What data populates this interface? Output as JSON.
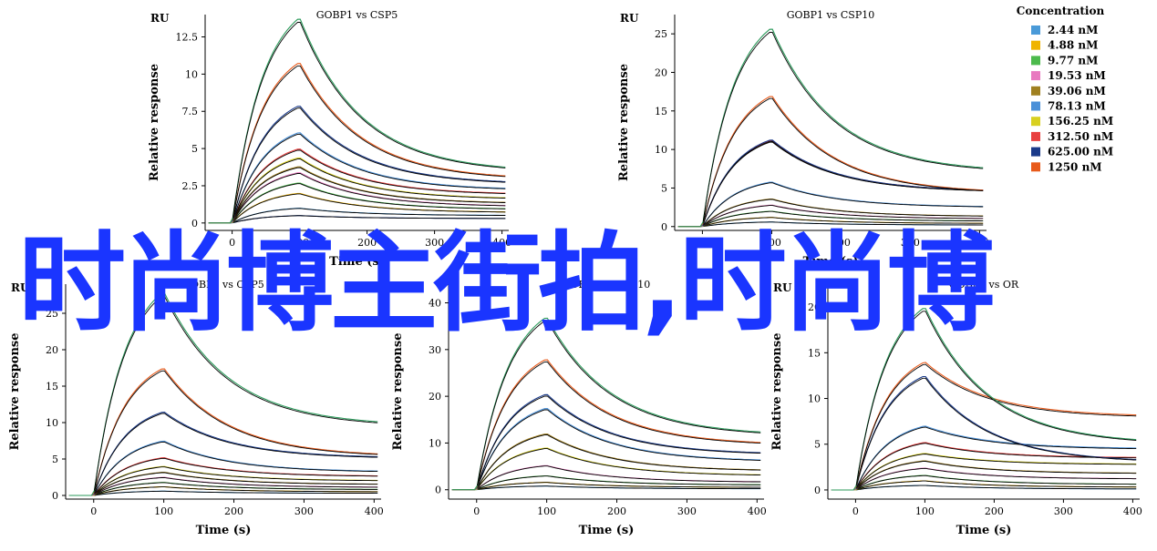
{
  "overlay": {
    "text": "时尚博主街拍,时尚博"
  },
  "legend": {
    "title": "Concentration",
    "entries": [
      {
        "label": "2.44 nM",
        "color": "#4a9ad8"
      },
      {
        "label": "4.88 nM",
        "color": "#f0b400"
      },
      {
        "label": "9.77 nM",
        "color": "#4cba4c"
      },
      {
        "label": "19.53 nM",
        "color": "#e87ac0"
      },
      {
        "label": "39.06 nM",
        "color": "#a08020"
      },
      {
        "label": "78.13 nM",
        "color": "#4a90d8"
      },
      {
        "label": "156.25 nM",
        "color": "#d8d020"
      },
      {
        "label": "312.50 nM",
        "color": "#e84040"
      },
      {
        "label": "625.00 nM",
        "color": "#1a3a8a"
      },
      {
        "label": "1250 nM",
        "color": "#e85a1a"
      }
    ]
  },
  "chart_data": [
    {
      "type": "line",
      "title": "GOBP1 vs CSP5",
      "unit_label": "RU",
      "xlabel": "Time (s)",
      "ylabel": "Relative response",
      "xlim": [
        -40,
        410
      ],
      "ylim": [
        -0.5,
        14
      ],
      "xticks": [
        0,
        100,
        200,
        300,
        400
      ],
      "xtick_labels": [
        "0",
        "100",
        "200",
        "300",
        "400"
      ],
      "yticks": [
        0,
        2.5,
        5,
        7.5,
        10,
        12.5
      ],
      "ytick_labels": [
        "0",
        "2.5",
        "5",
        "7.5",
        "10",
        "12.5"
      ],
      "assoc_end": 100,
      "series": [
        {
          "color": "#1a3a8a",
          "start": 0.5,
          "end": 0.3
        },
        {
          "color": "#4a9ad8",
          "start": 1.0,
          "end": 0.5
        },
        {
          "color": "#f0b400",
          "start": 2.0,
          "end": 0.7
        },
        {
          "color": "#4cba4c",
          "start": 2.7,
          "end": 0.9
        },
        {
          "color": "#e87ac0",
          "start": 3.4,
          "end": 1.1
        },
        {
          "color": "#a08020",
          "start": 3.8,
          "end": 1.3
        },
        {
          "color": "#d8d020",
          "start": 4.4,
          "end": 1.6
        },
        {
          "color": "#e84040",
          "start": 5.0,
          "end": 1.9
        },
        {
          "color": "#4a90d8",
          "start": 6.1,
          "end": 2.2
        },
        {
          "color": "#1a3a8a",
          "start": 7.9,
          "end": 2.6
        },
        {
          "color": "#e85a1a",
          "start": 10.8,
          "end": 2.9
        },
        {
          "color": "#2a9a5a",
          "start": 13.8,
          "end": 3.4
        }
      ]
    },
    {
      "type": "line",
      "title": "GOBP1 vs CSP10",
      "unit_label": "RU",
      "xlabel": "Time (s)",
      "ylabel": "Relative response",
      "xlim": [
        -40,
        410
      ],
      "ylim": [
        -0.5,
        27.5
      ],
      "xticks": [
        0,
        100,
        200,
        300,
        400
      ],
      "xtick_labels": [
        "0",
        "100",
        "200",
        "300",
        "400"
      ],
      "yticks": [
        0,
        5,
        10,
        15,
        20,
        25
      ],
      "ytick_labels": [
        "0",
        "5",
        "10",
        "15",
        "20",
        "25"
      ],
      "assoc_end": 100,
      "series": [
        {
          "color": "#4a9ad8",
          "start": 0.6,
          "end": 0.2
        },
        {
          "color": "#f0b400",
          "start": 1.2,
          "end": 0.4
        },
        {
          "color": "#4cba4c",
          "start": 2.0,
          "end": 0.7
        },
        {
          "color": "#e87ac0",
          "start": 2.8,
          "end": 1.0
        },
        {
          "color": "#a08020",
          "start": 3.6,
          "end": 1.3
        },
        {
          "color": "#4a90d8",
          "start": 5.8,
          "end": 2.5
        },
        {
          "color": "#e84040",
          "start": 11.2,
          "end": 4.5
        },
        {
          "color": "#1a3a8a",
          "start": 11.3,
          "end": 4.5
        },
        {
          "color": "#e85a1a",
          "start": 17.0,
          "end": 4.3
        },
        {
          "color": "#2a9a5a",
          "start": 25.8,
          "end": 7.0
        }
      ]
    },
    {
      "type": "line",
      "title": "GOBP2 vs CSP5",
      "unit_label": "RU",
      "xlabel": "Time (s)",
      "ylabel": "Relative response",
      "xlim": [
        -40,
        410
      ],
      "ylim": [
        -0.5,
        29
      ],
      "xticks": [
        0,
        100,
        200,
        300,
        400
      ],
      "xtick_labels": [
        "0",
        "100",
        "200",
        "300",
        "400"
      ],
      "yticks": [
        0,
        5,
        10,
        15,
        20,
        25
      ],
      "ytick_labels": [
        "0",
        "5",
        "10",
        "15",
        "20",
        "25"
      ],
      "assoc_end": 100,
      "series": [
        {
          "color": "#4a9ad8",
          "start": 0.6,
          "end": 0.3
        },
        {
          "color": "#f0b400",
          "start": 1.2,
          "end": 0.5
        },
        {
          "color": "#4cba4c",
          "start": 1.8,
          "end": 0.8
        },
        {
          "color": "#e87ac0",
          "start": 2.5,
          "end": 1.1
        },
        {
          "color": "#a08020",
          "start": 3.2,
          "end": 1.5
        },
        {
          "color": "#d8d020",
          "start": 4.0,
          "end": 2.0
        },
        {
          "color": "#e84040",
          "start": 5.2,
          "end": 2.6
        },
        {
          "color": "#4a90d8",
          "start": 7.5,
          "end": 3.2
        },
        {
          "color": "#1a3a8a",
          "start": 11.5,
          "end": 5.1
        },
        {
          "color": "#e85a1a",
          "start": 17.5,
          "end": 5.3
        },
        {
          "color": "#2a9a5a",
          "start": 28.0,
          "end": 9.5
        }
      ]
    },
    {
      "type": "line",
      "title": "GOBP2 vs CSP10",
      "unit_label": "RU",
      "xlabel": "Time (s)",
      "ylabel": "Relative response",
      "xlim": [
        -40,
        410
      ],
      "ylim": [
        -2,
        44
      ],
      "xticks": [
        0,
        100,
        200,
        300,
        400
      ],
      "xtick_labels": [
        "0",
        "100",
        "200",
        "300",
        "400"
      ],
      "yticks": [
        0,
        10,
        20,
        30,
        40
      ],
      "ytick_labels": [
        "0",
        "10",
        "20",
        "30",
        "40"
      ],
      "assoc_end": 100,
      "series": [
        {
          "color": "#4a9ad8",
          "start": 0.8,
          "end": 0.2
        },
        {
          "color": "#f0b400",
          "start": 1.6,
          "end": 0.5
        },
        {
          "color": "#4cba4c",
          "start": 3.0,
          "end": 1.0
        },
        {
          "color": "#e87ac0",
          "start": 5.2,
          "end": 1.6
        },
        {
          "color": "#d8d020",
          "start": 9.0,
          "end": 3.0
        },
        {
          "color": "#a08020",
          "start": 12.0,
          "end": 4.0
        },
        {
          "color": "#4a90d8",
          "start": 17.5,
          "end": 6.0
        },
        {
          "color": "#1a3a8a",
          "start": 20.5,
          "end": 7.5
        },
        {
          "color": "#e85a1a",
          "start": 28.0,
          "end": 9.5
        },
        {
          "color": "#2a9a5a",
          "start": 37.0,
          "end": 11.5
        }
      ]
    },
    {
      "type": "line",
      "title": "GOBP2 vs OR",
      "unit_label": "RU",
      "xlabel": "Time (s)",
      "ylabel": "Relative response",
      "xlim": [
        -40,
        410
      ],
      "ylim": [
        -1,
        22.5
      ],
      "xticks": [
        0,
        100,
        200,
        300,
        400
      ],
      "xtick_labels": [
        "0",
        "100",
        "200",
        "300",
        "400"
      ],
      "yticks": [
        0,
        5,
        10,
        15,
        20
      ],
      "ytick_labels": [
        "0",
        "5",
        "10",
        "15",
        "20"
      ],
      "assoc_end": 100,
      "series": [
        {
          "color": "#4a9ad8",
          "start": 0.5,
          "end": 0.1
        },
        {
          "color": "#f0b400",
          "start": 1.0,
          "end": 0.3
        },
        {
          "color": "#4cba4c",
          "start": 1.6,
          "end": 0.6
        },
        {
          "color": "#e87ac0",
          "start": 2.4,
          "end": 1.2
        },
        {
          "color": "#a08020",
          "start": 3.2,
          "end": 1.8
        },
        {
          "color": "#d8d020",
          "start": 4.0,
          "end": 2.8
        },
        {
          "color": "#e84040",
          "start": 5.2,
          "end": 3.5
        },
        {
          "color": "#4a90d8",
          "start": 7.0,
          "end": 4.5
        },
        {
          "color": "#1a3a8a",
          "start": 12.5,
          "end": 3.0
        },
        {
          "color": "#e85a1a",
          "start": 14.0,
          "end": 8.0
        },
        {
          "color": "#2a9a5a",
          "start": 20.0,
          "end": 5.0
        }
      ]
    }
  ]
}
